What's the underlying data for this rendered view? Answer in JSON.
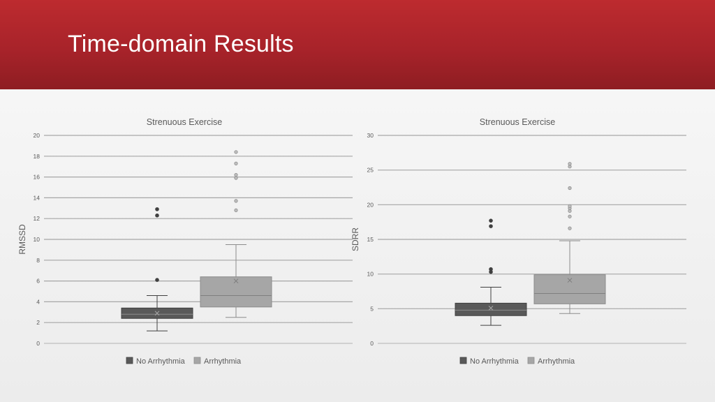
{
  "slide": {
    "title": "Time-domain Results"
  },
  "chart_data": [
    {
      "type": "box",
      "title": "Strenuous Exercise",
      "ylabel": "RMSSD",
      "ylim": [
        0,
        20
      ],
      "yticks": [
        0,
        2,
        4,
        6,
        8,
        10,
        12,
        14,
        16,
        18,
        20
      ],
      "grid": true,
      "legend": "bottom",
      "series": [
        {
          "name": "No Arrhythmia",
          "color": "#595959",
          "whisker_low": 1.2,
          "q1": 2.4,
          "median": 2.8,
          "q3": 3.4,
          "whisker_high": 4.6,
          "mean": 2.9,
          "outliers": [
            6.1,
            12.3,
            12.9
          ]
        },
        {
          "name": "Arrhythmia",
          "color": "#a6a6a6",
          "whisker_low": 2.5,
          "q1": 3.5,
          "median": 4.6,
          "q3": 6.4,
          "whisker_high": 9.5,
          "mean": 6.0,
          "outliers": [
            12.8,
            13.7,
            15.9,
            16.2,
            17.3,
            18.4
          ]
        }
      ]
    },
    {
      "type": "box",
      "title": "Strenuous Exercise",
      "ylabel": "SDRR",
      "ylim": [
        0,
        30
      ],
      "yticks": [
        0,
        5,
        10,
        15,
        20,
        25,
        30
      ],
      "grid": true,
      "legend": "bottom",
      "series": [
        {
          "name": "No Arrhythmia",
          "color": "#595959",
          "whisker_low": 2.6,
          "q1": 4.0,
          "median": 4.8,
          "q3": 5.8,
          "whisker_high": 8.1,
          "mean": 5.1,
          "outliers": [
            10.3,
            10.7,
            16.9,
            17.7
          ]
        },
        {
          "name": "Arrhythmia",
          "color": "#a6a6a6",
          "whisker_low": 4.3,
          "q1": 5.7,
          "median": 7.2,
          "q3": 9.9,
          "whisker_high": 14.8,
          "mean": 9.1,
          "outliers": [
            16.6,
            18.3,
            19.1,
            19.5,
            19.8,
            22.4,
            25.5,
            25.9
          ]
        }
      ]
    }
  ]
}
